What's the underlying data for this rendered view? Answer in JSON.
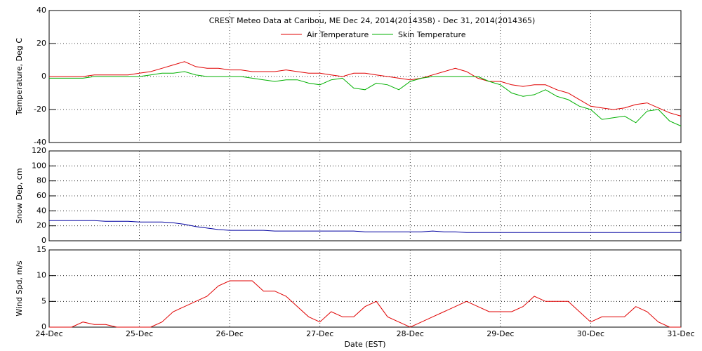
{
  "chart_data": [
    {
      "type": "line",
      "title": "CREST Meteo Data at Caribou, ME   Dec 24, 2014(2014358) - Dec 31, 2014(2014365)",
      "ylabel": "Temperature, Deg C",
      "x": [
        0,
        0.125,
        0.25,
        0.375,
        0.5,
        0.625,
        0.75,
        0.875,
        1,
        1.125,
        1.25,
        1.375,
        1.5,
        1.625,
        1.75,
        1.875,
        2,
        2.125,
        2.25,
        2.375,
        2.5,
        2.625,
        2.75,
        2.875,
        3,
        3.125,
        3.25,
        3.375,
        3.5,
        3.625,
        3.75,
        3.875,
        4,
        4.125,
        4.25,
        4.375,
        4.5,
        4.625,
        4.75,
        4.875,
        5,
        5.125,
        5.25,
        5.375,
        5.5,
        5.625,
        5.75,
        5.875,
        6,
        6.125,
        6.25,
        6.375,
        6.5,
        6.625,
        6.75,
        6.875,
        7
      ],
      "series": [
        {
          "name": "Air Temperature",
          "color": "#e00000",
          "values": [
            0,
            0,
            0,
            0,
            1,
            1,
            1,
            1,
            2,
            3,
            5,
            7,
            9,
            6,
            5,
            5,
            4,
            4,
            3,
            3,
            3,
            4,
            3,
            2,
            2,
            1,
            0,
            2,
            2,
            1,
            0,
            -1,
            -2,
            -1,
            1,
            3,
            5,
            3,
            -1,
            -3,
            -3,
            -5,
            -6,
            -5,
            -5,
            -8,
            -10,
            -14,
            -18,
            -19,
            -20,
            -19,
            -17,
            -16,
            -19,
            -22,
            -24
          ]
        },
        {
          "name": "Skin Temperature",
          "color": "#00b000",
          "values": [
            -1,
            -1,
            -1,
            -1,
            0,
            0,
            0,
            0,
            0,
            1,
            2,
            2,
            3,
            1,
            0,
            0,
            0,
            0,
            -1,
            -2,
            -3,
            -2,
            -2,
            -4,
            -5,
            -2,
            -1,
            -7,
            -8,
            -4,
            -5,
            -8,
            -3,
            -1,
            0,
            0,
            0,
            0,
            0,
            -3,
            -5,
            -10,
            -12,
            -11,
            -8,
            -12,
            -14,
            -18,
            -20,
            -26,
            -25,
            -24,
            -28,
            -21,
            -20,
            -27,
            -30
          ]
        }
      ],
      "xlim": [
        0,
        7
      ],
      "ylim": [
        -40,
        40
      ],
      "yticks": [
        -40,
        -20,
        0,
        20,
        40
      ],
      "grid": true
    },
    {
      "type": "line",
      "ylabel": "Snow Dep, cm",
      "x": [
        0,
        0.125,
        0.25,
        0.375,
        0.5,
        0.625,
        0.75,
        0.875,
        1,
        1.125,
        1.25,
        1.375,
        1.5,
        1.625,
        1.75,
        1.875,
        2,
        2.125,
        2.25,
        2.375,
        2.5,
        2.625,
        2.75,
        2.875,
        3,
        3.125,
        3.25,
        3.375,
        3.5,
        3.625,
        3.75,
        3.875,
        4,
        4.125,
        4.25,
        4.375,
        4.5,
        4.625,
        4.75,
        4.875,
        5,
        5.125,
        5.25,
        5.375,
        5.5,
        5.625,
        5.75,
        5.875,
        6,
        6.125,
        6.25,
        6.375,
        6.5,
        6.625,
        6.75,
        6.875,
        7
      ],
      "series": [
        {
          "color": "#0000a0",
          "values": [
            27,
            27,
            27,
            27,
            27,
            26,
            26,
            26,
            25,
            25,
            25,
            24,
            22,
            19,
            17,
            15,
            14,
            14,
            14,
            14,
            13,
            13,
            13,
            13,
            13,
            13,
            13,
            13,
            12,
            12,
            12,
            12,
            12,
            12,
            13,
            12,
            12,
            11,
            11,
            11,
            11,
            11,
            11,
            11,
            11,
            11,
            11,
            11,
            11,
            11,
            11,
            11,
            11,
            11,
            11,
            11,
            11
          ]
        }
      ],
      "xlim": [
        0,
        7
      ],
      "ylim": [
        0,
        120
      ],
      "yticks": [
        0,
        20,
        40,
        60,
        80,
        100,
        120
      ],
      "grid": true
    },
    {
      "type": "line",
      "ylabel": "Wind Spd, m/s",
      "xlabel": "Date (EST)",
      "x": [
        0,
        0.125,
        0.25,
        0.375,
        0.5,
        0.625,
        0.75,
        0.875,
        1,
        1.125,
        1.25,
        1.375,
        1.5,
        1.625,
        1.75,
        1.875,
        2,
        2.125,
        2.25,
        2.375,
        2.5,
        2.625,
        2.75,
        2.875,
        3,
        3.125,
        3.25,
        3.375,
        3.5,
        3.625,
        3.75,
        3.875,
        4,
        4.125,
        4.25,
        4.375,
        4.5,
        4.625,
        4.75,
        4.875,
        5,
        5.125,
        5.25,
        5.375,
        5.5,
        5.625,
        5.75,
        5.875,
        6,
        6.125,
        6.25,
        6.375,
        6.5,
        6.625,
        6.75,
        6.875,
        7
      ],
      "series": [
        {
          "color": "#e00000",
          "values": [
            0,
            0,
            0,
            1,
            0.5,
            0.5,
            0,
            0,
            0,
            0,
            1,
            3,
            4,
            5,
            6,
            8,
            9,
            9,
            9,
            7,
            7,
            6,
            4,
            2,
            1,
            3,
            2,
            2,
            4,
            5,
            2,
            1,
            0,
            1,
            2,
            3,
            4,
            5,
            4,
            3,
            3,
            3,
            4,
            6,
            5,
            5,
            5,
            3,
            1,
            2,
            2,
            2,
            4,
            3,
            1,
            0,
            0
          ]
        }
      ],
      "xlim": [
        0,
        7
      ],
      "xticks": [
        {
          "value": 0,
          "label": "24-Dec"
        },
        {
          "value": 1,
          "label": "25-Dec"
        },
        {
          "value": 2,
          "label": "26-Dec"
        },
        {
          "value": 3,
          "label": "27-Dec"
        },
        {
          "value": 4,
          "label": "28-Dec"
        },
        {
          "value": 5,
          "label": "29-Dec"
        },
        {
          "value": 6,
          "label": "30-Dec"
        },
        {
          "value": 7,
          "label": "31-Dec"
        }
      ],
      "ylim": [
        0,
        15
      ],
      "yticks": [
        0,
        5,
        10,
        15
      ],
      "grid": true
    }
  ]
}
